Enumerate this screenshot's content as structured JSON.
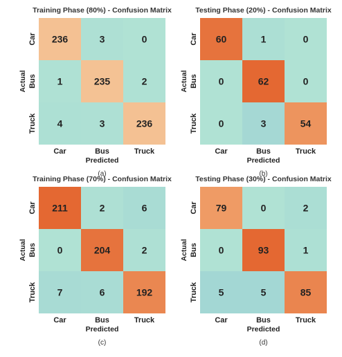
{
  "chart_data": [
    {
      "type": "heatmap",
      "title": "Training Phase (80%) - Confusion Matrix",
      "caption": "(a)",
      "xlabel": "Predicted",
      "ylabel": "Actual",
      "x_categories": [
        "Car",
        "Bus",
        "Truck"
      ],
      "y_categories": [
        "Car",
        "Bus",
        "Truck"
      ],
      "values": [
        [
          236,
          3,
          0
        ],
        [
          1,
          235,
          2
        ],
        [
          4,
          3,
          236
        ]
      ]
    },
    {
      "type": "heatmap",
      "title": "Testing Phase (20%) - Confusion Matrix",
      "caption": "(b)",
      "xlabel": "Predicted",
      "ylabel": "Actual",
      "x_categories": [
        "Car",
        "Bus",
        "Truck"
      ],
      "y_categories": [
        "Car",
        "Bus",
        "Truck"
      ],
      "values": [
        [
          60,
          1,
          0
        ],
        [
          0,
          62,
          0
        ],
        [
          0,
          3,
          54
        ]
      ]
    },
    {
      "type": "heatmap",
      "title": "Training Phase (70%) - Confusion Matrix",
      "caption": "(c)",
      "xlabel": "Predicted",
      "ylabel": "Actual",
      "x_categories": [
        "Car",
        "Bus",
        "Truck"
      ],
      "y_categories": [
        "Car",
        "Bus",
        "Truck"
      ],
      "values": [
        [
          211,
          2,
          6
        ],
        [
          0,
          204,
          2
        ],
        [
          7,
          6,
          192
        ]
      ]
    },
    {
      "type": "heatmap",
      "title": "Testing Phase (30%) - Confusion Matrix",
      "caption": "(d)",
      "xlabel": "Predicted",
      "ylabel": "Actual",
      "x_categories": [
        "Car",
        "Bus",
        "Truck"
      ],
      "y_categories": [
        "Car",
        "Bus",
        "Truck"
      ],
      "values": [
        [
          79,
          0,
          2
        ],
        [
          0,
          93,
          1
        ],
        [
          5,
          5,
          85
        ]
      ]
    }
  ]
}
